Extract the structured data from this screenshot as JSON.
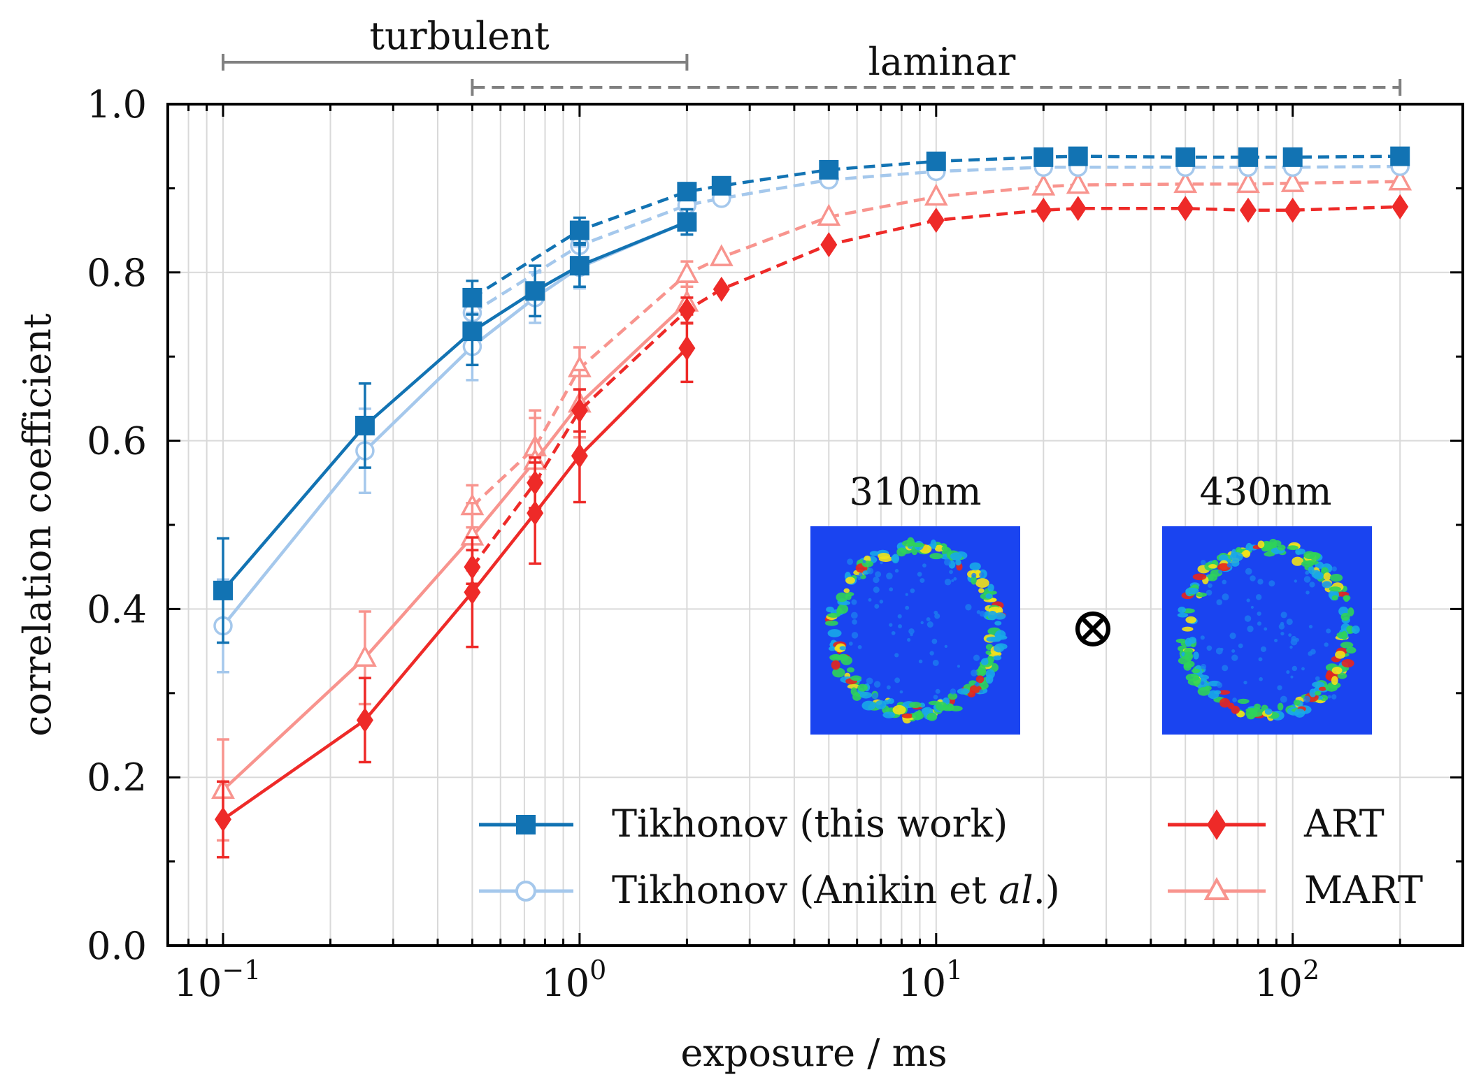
{
  "chart_data": {
    "type": "line",
    "xscale": "log",
    "xlim": [
      0.07,
      300
    ],
    "ylim": [
      0.0,
      1.0
    ],
    "grid": true,
    "xlabel": "exposure / ms",
    "ylabel": "correlation coefficient",
    "x_ticks": [
      {
        "value": 0.1,
        "base": "10",
        "exp": "−1"
      },
      {
        "value": 1,
        "base": "10",
        "exp": "0"
      },
      {
        "value": 10,
        "base": "10",
        "exp": "1"
      },
      {
        "value": 100,
        "base": "10",
        "exp": "2"
      }
    ],
    "y_ticks": [
      "0.0",
      "0.2",
      "0.4",
      "0.6",
      "0.8",
      "1.0"
    ],
    "regimes": [
      {
        "label": "turbulent",
        "x_start": 0.1,
        "x_end": 2,
        "style": "solid"
      },
      {
        "label": "laminar",
        "x_start": 0.5,
        "x_end": 200,
        "style": "dashed"
      }
    ],
    "series": [
      {
        "name": "Tikhonov (this work)",
        "color": "#1273b3",
        "marker": "square",
        "filled": true,
        "solid": {
          "x": [
            0.1,
            0.25,
            0.5,
            0.75,
            1,
            2
          ],
          "y": [
            0.422,
            0.618,
            0.73,
            0.778,
            0.808,
            0.86
          ],
          "err": [
            0.062,
            0.05,
            0.04,
            0.03,
            0.025,
            0.015
          ]
        },
        "dashed": {
          "x": [
            0.5,
            1,
            2,
            2.5,
            5,
            10,
            20,
            25,
            50,
            75,
            100,
            200
          ],
          "y": [
            0.77,
            0.85,
            0.896,
            0.903,
            0.922,
            0.932,
            0.937,
            0.938,
            0.937,
            0.937,
            0.937,
            0.938
          ],
          "err": [
            0.02,
            0.015,
            0.01,
            0,
            0,
            0,
            0,
            0,
            0,
            0,
            0,
            0
          ]
        }
      },
      {
        "name": "Tikhonov (Anikin et al.)",
        "name_prefix": "Tikhonov (Anikin et ",
        "name_italic": "al",
        "name_suffix": ".)",
        "color": "#a5c8ec",
        "marker": "circle",
        "filled": false,
        "solid": {
          "x": [
            0.1,
            0.25,
            0.5,
            0.75,
            1,
            2
          ],
          "y": [
            0.38,
            0.588,
            0.712,
            0.77,
            0.806,
            0.86
          ],
          "err": [
            0.055,
            0.05,
            0.04,
            0.03,
            0.025,
            0.015
          ]
        },
        "dashed": {
          "x": [
            0.5,
            1,
            2,
            2.5,
            5,
            10,
            20,
            25,
            50,
            75,
            100,
            200
          ],
          "y": [
            0.752,
            0.832,
            0.88,
            0.888,
            0.91,
            0.92,
            0.925,
            0.925,
            0.925,
            0.925,
            0.925,
            0.926
          ],
          "err": [
            0.02,
            0.015,
            0.01,
            0,
            0,
            0,
            0,
            0,
            0,
            0,
            0,
            0
          ]
        }
      },
      {
        "name": "ART",
        "color": "#ee2a28",
        "marker": "diamond",
        "filled": true,
        "solid": {
          "x": [
            0.1,
            0.25,
            0.5,
            0.75,
            1,
            2
          ],
          "y": [
            0.15,
            0.268,
            0.42,
            0.514,
            0.582,
            0.71
          ],
          "err": [
            0.045,
            0.05,
            0.065,
            0.06,
            0.055,
            0.04
          ]
        },
        "dashed": {
          "x": [
            0.5,
            0.75,
            1,
            2,
            2.5,
            5,
            10,
            20,
            25,
            50,
            75,
            100,
            200
          ],
          "y": [
            0.45,
            0.55,
            0.636,
            0.755,
            0.78,
            0.833,
            0.862,
            0.874,
            0.876,
            0.876,
            0.874,
            0.874,
            0.878
          ],
          "err": [
            0.02,
            0.03,
            0.025,
            0.015,
            0,
            0,
            0,
            0,
            0,
            0,
            0,
            0,
            0
          ]
        }
      },
      {
        "name": "MART",
        "color": "#f8948e",
        "marker": "triangle",
        "filled": false,
        "solid": {
          "x": [
            0.1,
            0.25,
            0.5,
            0.75,
            1,
            2
          ],
          "y": [
            0.185,
            0.342,
            0.486,
            0.576,
            0.644,
            0.764
          ],
          "err": [
            0.06,
            0.055,
            0.04,
            0.06,
            0.04,
            0.025
          ]
        },
        "dashed": {
          "x": [
            0.5,
            0.75,
            1,
            2,
            2.5,
            5,
            10,
            20,
            25,
            50,
            75,
            100,
            200
          ],
          "y": [
            0.522,
            0.592,
            0.686,
            0.798,
            0.818,
            0.866,
            0.89,
            0.902,
            0.904,
            0.905,
            0.905,
            0.906,
            0.908
          ],
          "err": [
            0.025,
            0.035,
            0.025,
            0.015,
            0,
            0,
            0,
            0,
            0,
            0,
            0,
            0,
            0
          ]
        }
      }
    ],
    "legend": {
      "placement": "lower-right",
      "columns": 2
    },
    "inset": {
      "left_label": "310nm",
      "right_label": "430nm",
      "operator": "⊗",
      "description": "two false-color reconstructed cross-sections (blue background, green/yellow/red ring)"
    }
  }
}
